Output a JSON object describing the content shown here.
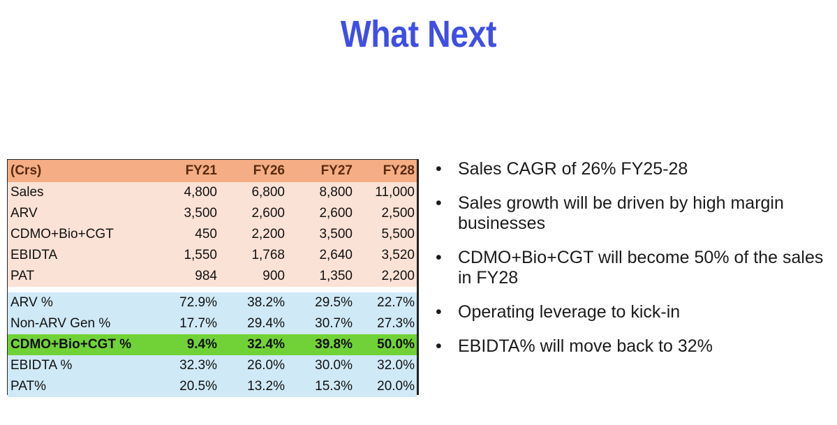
{
  "title": "What Next",
  "table": {
    "header": [
      "(Crs)",
      "FY21",
      "FY26",
      "FY27",
      "FY28"
    ],
    "rows_abs": [
      {
        "label": "Sales",
        "values": [
          "4,800",
          "6,800",
          "8,800",
          "11,000"
        ]
      },
      {
        "label": "ARV",
        "values": [
          "3,500",
          "2,600",
          "2,600",
          "2,500"
        ]
      },
      {
        "label": "CDMO+Bio+CGT",
        "values": [
          "450",
          "2,200",
          "3,500",
          "5,500"
        ]
      },
      {
        "label": "EBIDTA",
        "values": [
          "1,550",
          "1,768",
          "2,640",
          "3,520"
        ]
      },
      {
        "label": "PAT",
        "values": [
          "984",
          "900",
          "1,350",
          "2,200"
        ]
      }
    ],
    "rows_pct": [
      {
        "label": "ARV %",
        "values": [
          "72.9%",
          "38.2%",
          "29.5%",
          "22.7%"
        ],
        "highlight": false
      },
      {
        "label": "Non-ARV Gen %",
        "values": [
          "17.7%",
          "29.4%",
          "30.7%",
          "27.3%"
        ],
        "highlight": false
      },
      {
        "label": "CDMO+Bio+CGT %",
        "values": [
          "9.4%",
          "32.4%",
          "39.8%",
          "50.0%"
        ],
        "highlight": true
      },
      {
        "label": "EBIDTA %",
        "values": [
          "32.3%",
          "26.0%",
          "30.0%",
          "32.0%"
        ],
        "highlight": false
      },
      {
        "label": "PAT%",
        "values": [
          "20.5%",
          "13.2%",
          "15.3%",
          "20.0%"
        ],
        "highlight": false
      }
    ]
  },
  "bullets": [
    "Sales CAGR of 26% FY25-28",
    "Sales growth will be driven by high margin businesses",
    "CDMO+Bio+CGT will become 50% of the sales in FY28",
    "Operating leverage to kick-in",
    "EBIDTA% will move back to 32%"
  ],
  "colors": {
    "title": "#3f4fe3",
    "header_bg": "#f4ad84",
    "abs_rows_bg": "#fbe2d6",
    "pct_rows_bg": "#cfe9f6",
    "highlight_bg": "#71d238"
  }
}
